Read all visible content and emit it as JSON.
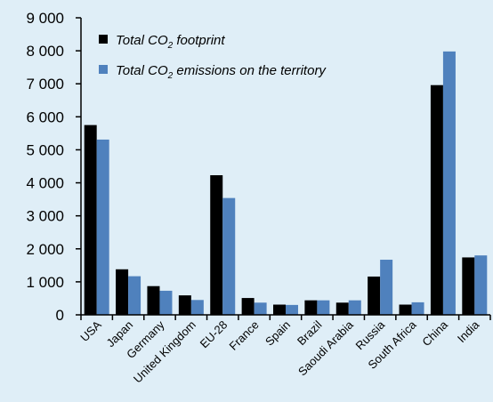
{
  "chart_data": {
    "type": "bar",
    "categories": [
      "USA",
      "Japan",
      "Germany",
      "United Kingdom",
      "EU-28",
      "France",
      "Spain",
      "Brazil",
      "Saoudi Arabia",
      "Russia",
      "South Africa",
      "China",
      "India"
    ],
    "series": [
      {
        "name": "Total CO2 footprint",
        "name_parts": [
          "Total CO",
          "2",
          " footprint"
        ],
        "color": "#000000",
        "values": [
          5750,
          1380,
          870,
          590,
          4230,
          510,
          310,
          440,
          370,
          1160,
          310,
          6960,
          1740
        ]
      },
      {
        "name": "Total CO2 emissions on the territory",
        "name_parts": [
          "Total CO",
          "2",
          " emissions on the territory"
        ],
        "color": "#4f81bd",
        "values": [
          5310,
          1170,
          730,
          450,
          3540,
          370,
          300,
          440,
          440,
          1670,
          380,
          7980,
          1800
        ]
      }
    ],
    "ylim": [
      0,
      9000
    ],
    "yticks": [
      0,
      1000,
      2000,
      3000,
      4000,
      5000,
      6000,
      7000,
      8000,
      9000
    ],
    "ytick_labels": [
      "0",
      "1 000",
      "2 000",
      "3 000",
      "4 000",
      "5 000",
      "6 000",
      "7 000",
      "8 000",
      "9 000"
    ],
    "legend_position": "top-left",
    "grid": false
  }
}
